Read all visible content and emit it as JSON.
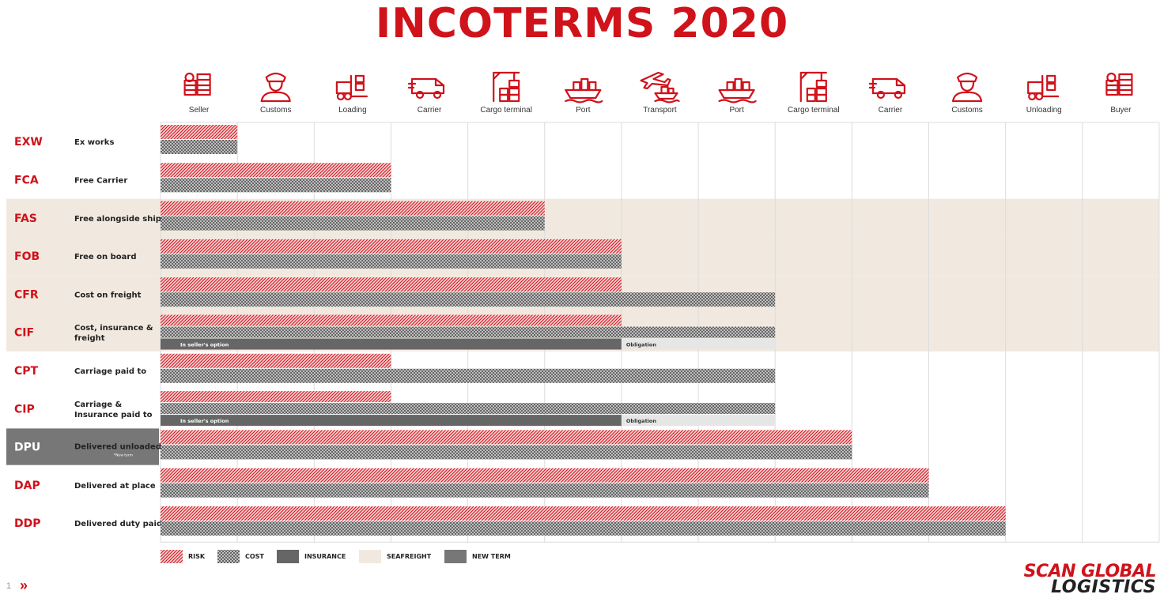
{
  "title": "INCOTERMS 2020",
  "colors": {
    "accent": "#d0121b",
    "risk": "#d0121b",
    "cost": "#555555",
    "insurance": "#666666",
    "seafreight": "#f1e9df",
    "new_term": "#777777",
    "obligation": "#e6e6e6"
  },
  "chart_data": {
    "type": "bar",
    "stages": [
      {
        "label": "Seller",
        "icon": "coins-icon"
      },
      {
        "label": "Customs",
        "icon": "customs-officer-icon"
      },
      {
        "label": "Loading",
        "icon": "forklift-icon"
      },
      {
        "label": "Carrier",
        "icon": "van-icon"
      },
      {
        "label": "Cargo terminal",
        "icon": "crane-icon"
      },
      {
        "label": "Port",
        "icon": "ship-icon"
      },
      {
        "label": "Transport",
        "icon": "plane-ship-icon"
      },
      {
        "label": "Port",
        "icon": "ship-icon"
      },
      {
        "label": "Cargo terminal",
        "icon": "crane-icon"
      },
      {
        "label": "Carrier",
        "icon": "van-icon"
      },
      {
        "label": "Customs",
        "icon": "customs-officer-icon"
      },
      {
        "label": "Unloading",
        "icon": "forklift-icon"
      },
      {
        "label": "Buyer",
        "icon": "coins-icon"
      }
    ],
    "terms": [
      {
        "code": "EXW",
        "name": [
          "Ex works"
        ],
        "risk": 1,
        "cost": 1,
        "seafreight": false
      },
      {
        "code": "FCA",
        "name": [
          "Free Carrier"
        ],
        "risk": 3,
        "cost": 3,
        "seafreight": false
      },
      {
        "code": "FAS",
        "name": [
          "Free alongside ship"
        ],
        "risk": 5,
        "cost": 5,
        "seafreight": true
      },
      {
        "code": "FOB",
        "name": [
          "Free on board"
        ],
        "risk": 6,
        "cost": 6,
        "seafreight": true
      },
      {
        "code": "CFR",
        "name": [
          "Cost on freight"
        ],
        "risk": 6,
        "cost": 8,
        "seafreight": true
      },
      {
        "code": "CIF",
        "name": [
          "Cost, insurance &",
          "freight"
        ],
        "risk": 6,
        "cost": 8,
        "seafreight": true,
        "insurance": {
          "option_end": 6,
          "option_label": "In seller's option",
          "obligation_end": 8,
          "obligation_label": "Obligation"
        }
      },
      {
        "code": "CPT",
        "name": [
          "Carriage paid to"
        ],
        "risk": 3,
        "cost": 8,
        "seafreight": false
      },
      {
        "code": "CIP",
        "name": [
          "Carriage &",
          "Insurance paid to"
        ],
        "risk": 3,
        "cost": 8,
        "seafreight": false,
        "insurance": {
          "option_end": 6,
          "option_label": "In seller's option",
          "obligation_end": 8,
          "obligation_label": "Obligation"
        }
      },
      {
        "code": "DPU",
        "name": [
          "Delivered unloaded"
        ],
        "note": "*New term",
        "risk": 9,
        "cost": 9,
        "seafreight": false,
        "new_term": true
      },
      {
        "code": "DAP",
        "name": [
          "Delivered at place"
        ],
        "risk": 10,
        "cost": 10,
        "seafreight": false
      },
      {
        "code": "DDP",
        "name": [
          "Delivered duty paid"
        ],
        "risk": 11,
        "cost": 11,
        "seafreight": false
      }
    ],
    "legend": [
      {
        "key": "risk",
        "label": "RISK"
      },
      {
        "key": "cost",
        "label": "COST"
      },
      {
        "key": "insurance",
        "label": "INSURANCE"
      },
      {
        "key": "seafreight",
        "label": "SEAFREIGHT"
      },
      {
        "key": "new_term",
        "label": "NEW TERM"
      }
    ]
  },
  "footer": {
    "page_number": "1",
    "arrow": "»",
    "logo_line1": "SCAN GLOBAL",
    "logo_line2": "LOGISTICS"
  }
}
